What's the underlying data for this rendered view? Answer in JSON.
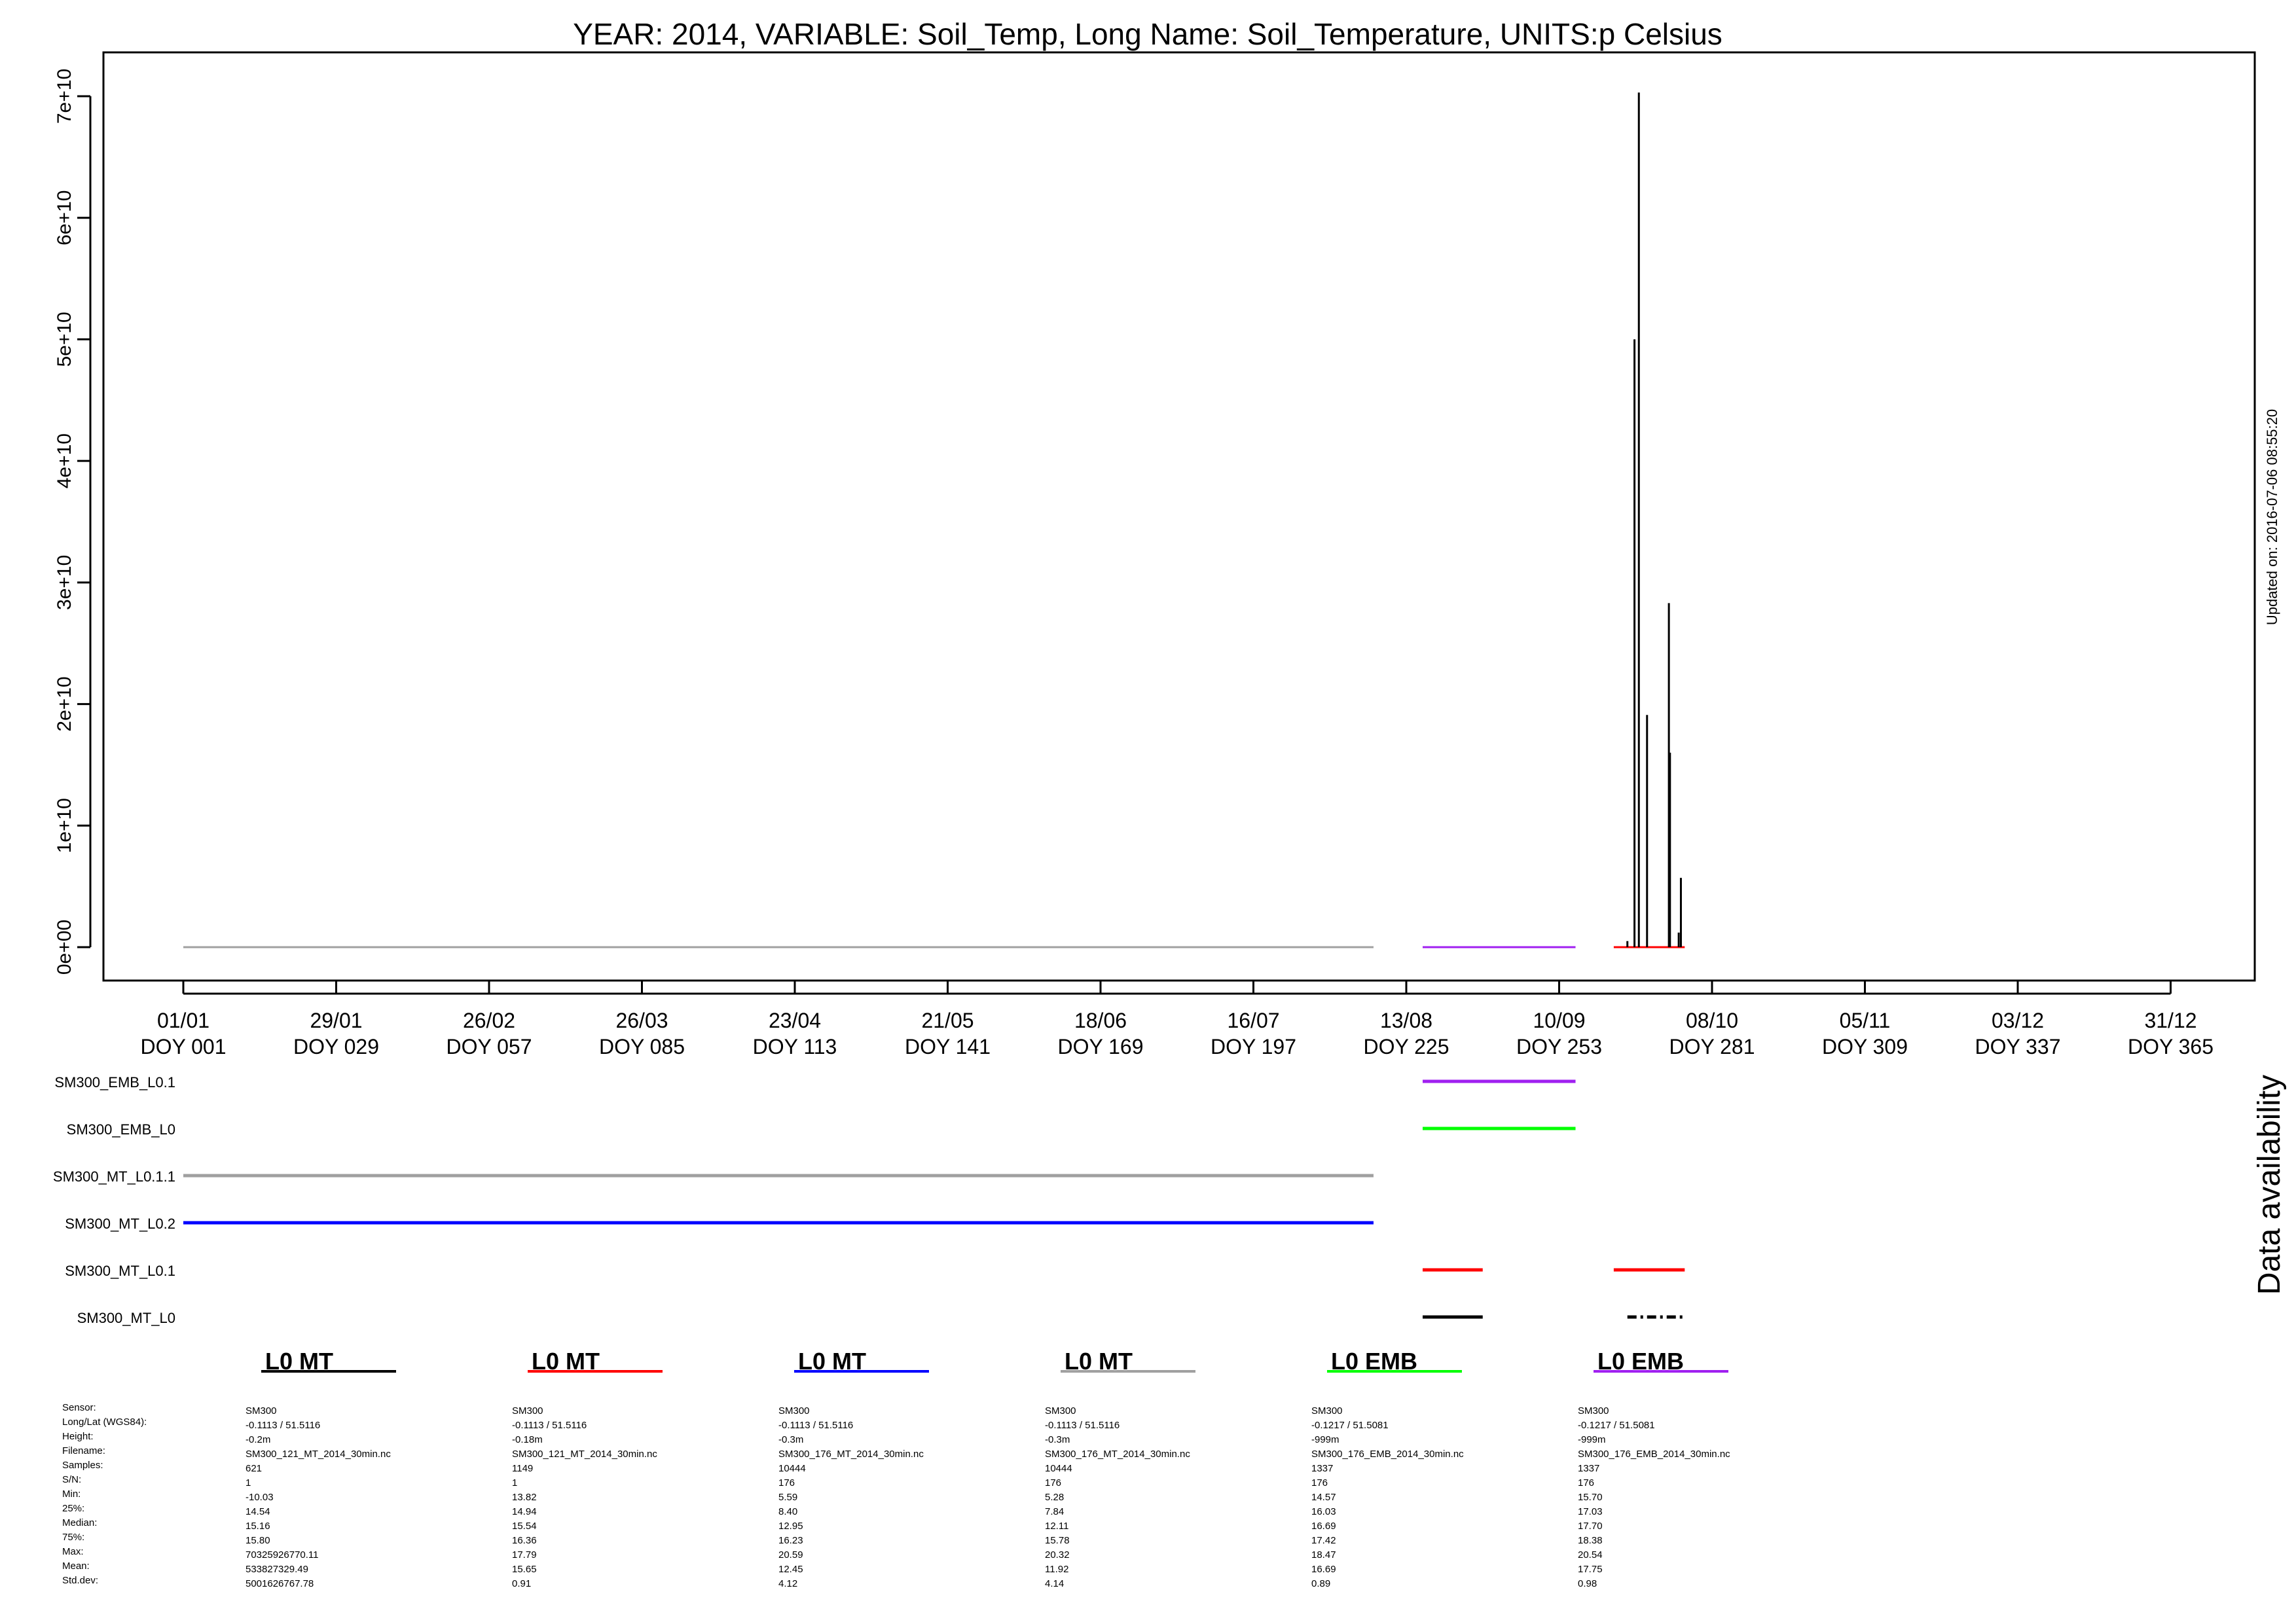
{
  "chart_data": {
    "type": "line",
    "title": "YEAR: 2014, VARIABLE: Soil_Temp, Long Name: Soil_Temperature, UNITS:p Celsius",
    "updated": "Updated on: 2016-07-06 08:55:20",
    "xlim": [
      1,
      365
    ],
    "ylim": [
      0,
      70000000000
    ],
    "y_ticks": [
      "0e+00",
      "1e+10",
      "2e+10",
      "3e+10",
      "4e+10",
      "5e+10",
      "6e+10",
      "7e+10"
    ],
    "x_ticks": [
      {
        "date": "01/01",
        "doy": "DOY 001"
      },
      {
        "date": "29/01",
        "doy": "DOY 029"
      },
      {
        "date": "26/02",
        "doy": "DOY 057"
      },
      {
        "date": "26/03",
        "doy": "DOY 085"
      },
      {
        "date": "23/04",
        "doy": "DOY 113"
      },
      {
        "date": "21/05",
        "doy": "DOY 141"
      },
      {
        "date": "18/06",
        "doy": "DOY 169"
      },
      {
        "date": "16/07",
        "doy": "DOY 197"
      },
      {
        "date": "13/08",
        "doy": "DOY 225"
      },
      {
        "date": "10/09",
        "doy": "DOY 253"
      },
      {
        "date": "08/10",
        "doy": "DOY 281"
      },
      {
        "date": "05/11",
        "doy": "DOY 309"
      },
      {
        "date": "03/12",
        "doy": "DOY 337"
      },
      {
        "date": "31/12",
        "doy": "DOY 365"
      }
    ],
    "baselines": [
      {
        "color": "#a0a0a0",
        "segments": [
          [
            1,
            219
          ]
        ]
      },
      {
        "color": "#a020f0",
        "segments": [
          [
            228,
            256
          ]
        ]
      },
      {
        "color": "#ff0000",
        "segments": [
          [
            263,
            276
          ]
        ]
      }
    ],
    "spikes": [
      {
        "doy": 266.8,
        "value": 50000000000
      },
      {
        "doy": 267.6,
        "value": 70300000000
      },
      {
        "doy": 269.1,
        "value": 19100000000
      },
      {
        "doy": 273.1,
        "value": 28300000000
      },
      {
        "doy": 273.3,
        "value": 16000000000
      },
      {
        "doy": 275.3,
        "value": 5700000000
      },
      {
        "doy": 274.9,
        "value": 1200000000
      },
      {
        "doy": 265.5,
        "value": 500000000
      }
    ],
    "availability_label": "Data availability",
    "availability": [
      {
        "name": "SM300_EMB_L0.1",
        "color": "#a020f0",
        "segments": [
          [
            228,
            256
          ]
        ]
      },
      {
        "name": "SM300_EMB_L0",
        "color": "#00ff00",
        "segments": [
          [
            228,
            256
          ]
        ]
      },
      {
        "name": "SM300_MT_L0.1.1",
        "color": "#a0a0a0",
        "segments": [
          [
            1,
            219
          ]
        ]
      },
      {
        "name": "SM300_MT_L0.2",
        "color": "#0000ff",
        "segments": [
          [
            1,
            219
          ]
        ]
      },
      {
        "name": "SM300_MT_L0.1",
        "color": "#ff0000",
        "segments": [
          [
            228,
            239
          ],
          [
            263,
            276
          ]
        ]
      },
      {
        "name": "SM300_MT_L0",
        "color": "#000000",
        "segments": [
          [
            228,
            239
          ],
          [
            265.5,
            276
          ]
        ],
        "dashed_after": 265
      }
    ],
    "legend": [
      {
        "label": "L0 MT",
        "color": "#000000"
      },
      {
        "label": "L0 MT",
        "color": "#ff0000"
      },
      {
        "label": "L0 MT",
        "color": "#0000ff"
      },
      {
        "label": "L0 MT",
        "color": "#a0a0a0"
      },
      {
        "label": "L0 EMB",
        "color": "#00ff00"
      },
      {
        "label": "L0 EMB",
        "color": "#a020f0"
      }
    ],
    "stat_labels": [
      "Sensor:",
      "Long/Lat (WGS84):",
      "Height:",
      "Filename:",
      "Samples:",
      "S/N:",
      "Min:",
      "25%:",
      "Median:",
      "75%:",
      "Max:",
      "Mean:",
      "Std.dev:"
    ],
    "stats": [
      [
        "SM300",
        "-0.1113 / 51.5116",
        "-0.2m",
        "SM300_121_MT_2014_30min.nc",
        "621",
        "1",
        "-10.03",
        "14.54",
        "15.16",
        "15.80",
        "70325926770.11",
        "533827329.49",
        "5001626767.78"
      ],
      [
        "SM300",
        "-0.1113 / 51.5116",
        "-0.18m",
        "SM300_121_MT_2014_30min.nc",
        "1149",
        "1",
        "13.82",
        "14.94",
        "15.54",
        "16.36",
        "17.79",
        "15.65",
        "0.91"
      ],
      [
        "SM300",
        "-0.1113 / 51.5116",
        "-0.3m",
        "SM300_176_MT_2014_30min.nc",
        "10444",
        "176",
        "5.59",
        "8.40",
        "12.95",
        "16.23",
        "20.59",
        "12.45",
        "4.12"
      ],
      [
        "SM300",
        "-0.1113 / 51.5116",
        "-0.3m",
        "SM300_176_MT_2014_30min.nc",
        "10444",
        "176",
        "5.28",
        "7.84",
        "12.11",
        "15.78",
        "20.32",
        "11.92",
        "4.14"
      ],
      [
        "SM300",
        "-0.1217 / 51.5081",
        "-999m",
        "SM300_176_EMB_2014_30min.nc",
        "1337",
        "176",
        "14.57",
        "16.03",
        "16.69",
        "17.42",
        "18.47",
        "16.69",
        "0.89"
      ],
      [
        "SM300",
        "-0.1217 / 51.5081",
        "-999m",
        "SM300_176_EMB_2014_30min.nc",
        "1337",
        "176",
        "15.70",
        "17.03",
        "17.70",
        "18.38",
        "20.54",
        "17.75",
        "0.98"
      ]
    ]
  }
}
